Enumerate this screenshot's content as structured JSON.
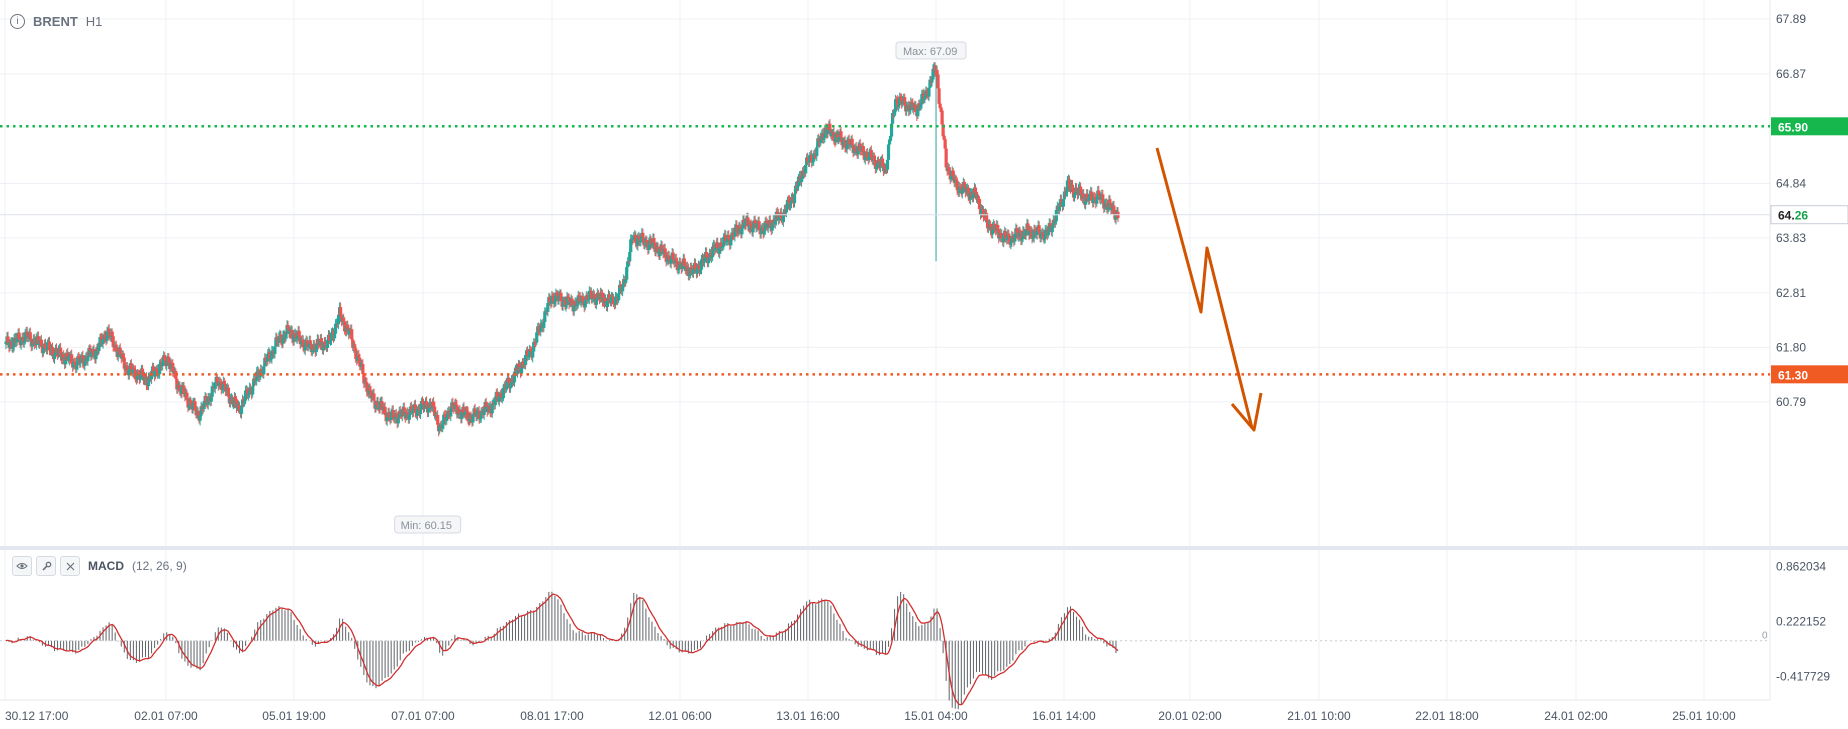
{
  "header": {
    "symbol": "BRENT",
    "timeframe": "H1"
  },
  "indicator": {
    "name": "MACD",
    "params": "(12, 26, 9)"
  },
  "chart_data": {
    "type": "candlestick",
    "price_axis": {
      "min": 59.6,
      "max": 67.89,
      "ticks": [
        "67.89",
        "66.87",
        "64.84",
        "63.83",
        "62.81",
        "61.80",
        "60.79"
      ]
    },
    "resistance": {
      "value": 65.9,
      "label": "65.90",
      "color": "#16b84e"
    },
    "target": {
      "value": 61.3,
      "label": "61.30",
      "color": "#f05a23"
    },
    "last_price": {
      "value": 64.26,
      "label_int": "64.",
      "label_dec": "26"
    },
    "max_label": "Max: 67.09",
    "min_label": "Min: 60.15",
    "anchors": [
      [
        0,
        61.85
      ],
      [
        2,
        62.0
      ],
      [
        4,
        61.8
      ],
      [
        5,
        61.7
      ],
      [
        7,
        61.5
      ],
      [
        9,
        61.75
      ],
      [
        10,
        62.1
      ],
      [
        12,
        61.4
      ],
      [
        14,
        61.2
      ],
      [
        16,
        61.6
      ],
      [
        17,
        61.1
      ],
      [
        19,
        60.55
      ],
      [
        20,
        60.85
      ],
      [
        21,
        61.2
      ],
      [
        23,
        60.65
      ],
      [
        25,
        61.3
      ],
      [
        27,
        61.95
      ],
      [
        28,
        62.1
      ],
      [
        30,
        61.8
      ],
      [
        32,
        61.9
      ],
      [
        33,
        62.4
      ],
      [
        34,
        62.05
      ],
      [
        36,
        60.9
      ],
      [
        38,
        60.5
      ],
      [
        40,
        60.6
      ],
      [
        42,
        60.75
      ],
      [
        43,
        60.3
      ],
      [
        44,
        60.7
      ],
      [
        46,
        60.5
      ],
      [
        48,
        60.7
      ],
      [
        50,
        61.2
      ],
      [
        52,
        61.75
      ],
      [
        54,
        62.75
      ],
      [
        56,
        62.6
      ],
      [
        58,
        62.75
      ],
      [
        60,
        62.65
      ],
      [
        61,
        62.9
      ],
      [
        62,
        63.85
      ],
      [
        64,
        63.7
      ],
      [
        66,
        63.4
      ],
      [
        68,
        63.2
      ],
      [
        70,
        63.6
      ],
      [
        72,
        63.9
      ],
      [
        73,
        64.1
      ],
      [
        75,
        64.0
      ],
      [
        77,
        64.3
      ],
      [
        78,
        64.65
      ],
      [
        79,
        65.15
      ],
      [
        80,
        65.4
      ],
      [
        81,
        65.85
      ],
      [
        83,
        65.6
      ],
      [
        85,
        65.4
      ],
      [
        87,
        65.1
      ],
      [
        88,
        66.4
      ],
      [
        90,
        66.2
      ],
      [
        91,
        66.5
      ],
      [
        92,
        67.0
      ],
      [
        93,
        65.2
      ],
      [
        94,
        64.8
      ],
      [
        96,
        64.6
      ],
      [
        97,
        64.1
      ],
      [
        99,
        63.8
      ],
      [
        101,
        63.95
      ],
      [
        103,
        63.9
      ],
      [
        104,
        64.3
      ],
      [
        105,
        64.8
      ],
      [
        107,
        64.55
      ],
      [
        108,
        64.6
      ],
      [
        110,
        64.26
      ]
    ],
    "macd_axis": {
      "min": -0.55,
      "max": 0.95,
      "ticks": [
        "0.862034",
        "0.222152",
        "-0.417729"
      ],
      "zero_label": "0"
    },
    "x_labels": [
      "30.12 17:00",
      "02.01 07:00",
      "05.01 19:00",
      "07.01 07:00",
      "08.01 17:00",
      "12.01 06:00",
      "13.01 16:00",
      "15.01 04:00",
      "16.01 14:00",
      "20.01 02:00",
      "21.01 10:00",
      "22.01 18:00",
      "24.01 02:00",
      "25.01 10:00"
    ]
  },
  "colors": {
    "up": "#26a69a",
    "down": "#ef5350",
    "arrow": "#d35400",
    "signal": "#d32f2f"
  }
}
